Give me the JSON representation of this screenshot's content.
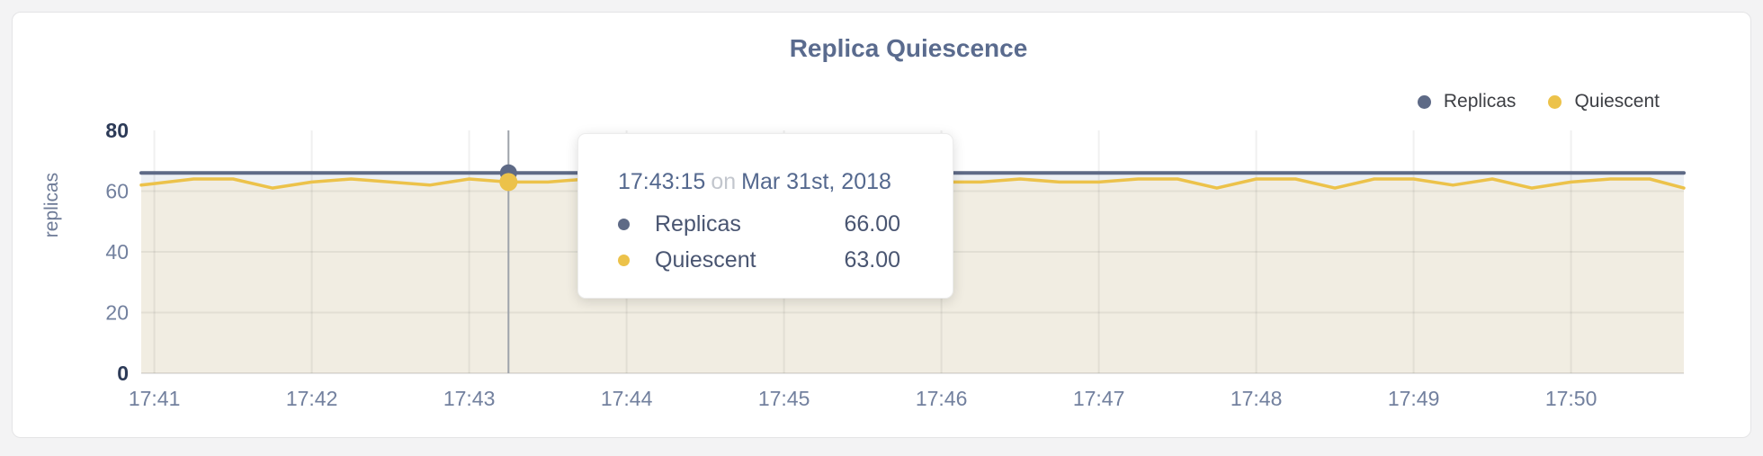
{
  "title": "Replica Quiescence",
  "legend": {
    "items": [
      {
        "label": "Replicas",
        "color": "#5e6a86"
      },
      {
        "label": "Quiescent",
        "color": "#ecc24a"
      }
    ]
  },
  "y_axis": {
    "label": "replicas",
    "ticks": [
      0,
      20,
      40,
      60,
      80
    ],
    "strong_ticks": [
      0,
      80
    ]
  },
  "x_axis": {
    "ticks": [
      "17:41",
      "17:42",
      "17:43",
      "17:44",
      "17:45",
      "17:46",
      "17:47",
      "17:48",
      "17:49",
      "17:50"
    ]
  },
  "tooltip": {
    "time": "17:43:15",
    "on_word": "on",
    "date": "Mar 31st, 2018",
    "rows": [
      {
        "label": "Replicas",
        "value": "66.00",
        "color": "#5e6a86"
      },
      {
        "label": "Quiescent",
        "value": "63.00",
        "color": "#ecc24a"
      }
    ]
  },
  "chart_data": {
    "type": "line",
    "title": "Replica Quiescence",
    "xlabel": "",
    "ylabel": "replicas",
    "ylim": [
      0,
      80
    ],
    "x_domain": [
      "17:40:55",
      "17:50:43"
    ],
    "grid": true,
    "legend_position": "top-right",
    "hover": {
      "time": "17:43:15",
      "date": "Mar 31st, 2018",
      "values": {
        "Replicas": 66,
        "Quiescent": 63
      }
    },
    "series": [
      {
        "name": "Replicas",
        "color": "#5e6a86",
        "fill": "#edf0f4",
        "points": [
          [
            "17:40:55",
            66
          ],
          [
            "17:50:43",
            66
          ]
        ]
      },
      {
        "name": "Quiescent",
        "color": "#ecc24a",
        "fill": "#f1ede2",
        "points": [
          [
            "17:40:55",
            62
          ],
          [
            "17:41:00",
            62.5
          ],
          [
            "17:41:15",
            64
          ],
          [
            "17:41:30",
            64
          ],
          [
            "17:41:45",
            61
          ],
          [
            "17:42:00",
            63
          ],
          [
            "17:42:15",
            64
          ],
          [
            "17:42:30",
            63
          ],
          [
            "17:42:45",
            62
          ],
          [
            "17:43:00",
            64
          ],
          [
            "17:43:15",
            63
          ],
          [
            "17:43:30",
            63
          ],
          [
            "17:43:45",
            64
          ],
          [
            "17:44:00",
            63
          ],
          [
            "17:44:15",
            64
          ],
          [
            "17:44:30",
            63
          ],
          [
            "17:44:45",
            64
          ],
          [
            "17:45:00",
            63
          ],
          [
            "17:45:15",
            64
          ],
          [
            "17:45:30",
            63
          ],
          [
            "17:45:45",
            64
          ],
          [
            "17:46:00",
            63
          ],
          [
            "17:46:15",
            63
          ],
          [
            "17:46:30",
            64
          ],
          [
            "17:46:45",
            63
          ],
          [
            "17:47:00",
            63
          ],
          [
            "17:47:15",
            64
          ],
          [
            "17:47:30",
            64
          ],
          [
            "17:47:45",
            61
          ],
          [
            "17:48:00",
            64
          ],
          [
            "17:48:15",
            64
          ],
          [
            "17:48:30",
            61
          ],
          [
            "17:48:45",
            64
          ],
          [
            "17:49:00",
            64
          ],
          [
            "17:49:15",
            62
          ],
          [
            "17:49:30",
            64
          ],
          [
            "17:49:45",
            61
          ],
          [
            "17:50:00",
            63
          ],
          [
            "17:50:15",
            64
          ],
          [
            "17:50:30",
            64
          ],
          [
            "17:50:43",
            61
          ]
        ]
      }
    ]
  }
}
